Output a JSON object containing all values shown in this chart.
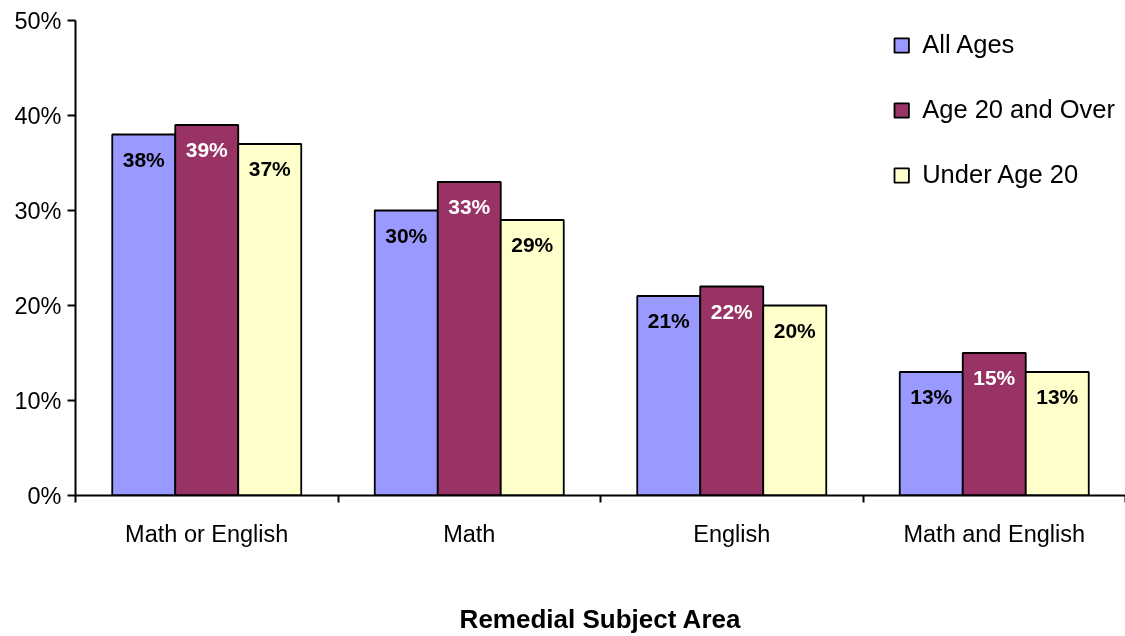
{
  "chart_data": {
    "type": "bar",
    "xlabel": "Remedial Subject Area",
    "categories": [
      "Math or English",
      "Math",
      "English",
      "Math and English"
    ],
    "series": [
      {
        "name": "All Ages",
        "color": "#9999ff",
        "values": [
          38,
          30,
          21,
          13
        ],
        "value_labels": [
          "38%",
          "30%",
          "21%",
          "13%"
        ]
      },
      {
        "name": "Age 20 and Over",
        "color": "#993366",
        "values": [
          39,
          33,
          22,
          15
        ],
        "value_labels": [
          "39%",
          "33%",
          "22%",
          "15%"
        ]
      },
      {
        "name": "Under Age 20",
        "color": "#ffffcc",
        "values": [
          37,
          29,
          20,
          13
        ],
        "value_labels": [
          "37%",
          "29%",
          "20%",
          "13%"
        ]
      }
    ],
    "ylim": [
      0,
      50
    ],
    "yticks": [
      {
        "value": 0,
        "label": "0%"
      },
      {
        "value": 10,
        "label": "10%"
      },
      {
        "value": 20,
        "label": "20%"
      },
      {
        "value": 30,
        "label": "30%"
      },
      {
        "value": 40,
        "label": "40%"
      },
      {
        "value": 50,
        "label": "50%"
      }
    ],
    "grid": false,
    "legend": "top right"
  }
}
